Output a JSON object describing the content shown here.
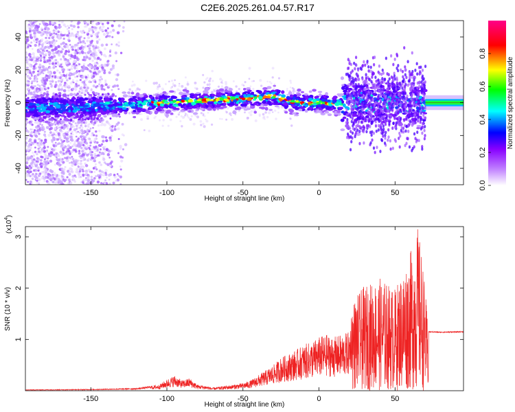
{
  "title": "C2E6.2025.261.04.57.R17",
  "chart_data": [
    {
      "type": "heatmap",
      "title": "C2E6.2025.261.04.57.R17",
      "xlabel": "Height of straight line (km)",
      "ylabel": "Frequency (Hz)",
      "xlim": [
        -193,
        95
      ],
      "ylim": [
        -50,
        50
      ],
      "xticks": [
        -150,
        -100,
        -50,
        0,
        50
      ],
      "yticks": [
        -40,
        -20,
        0,
        20,
        40
      ],
      "colorbar": {
        "label": "Normalized spectral amplitude",
        "range": [
          0,
          1
        ],
        "ticks": [
          "0.0",
          "0.2",
          "0.4",
          "0.6",
          "0.8"
        ],
        "colors": [
          "#ffffff",
          "#8800ff",
          "#0000ff",
          "#00ffff",
          "#00ff00",
          "#ffff00",
          "#ff0000",
          "#ff00aa"
        ]
      },
      "ridge": {
        "x": [
          -185,
          -160,
          -140,
          -120,
          -100,
          -80,
          -60,
          -40,
          -30,
          -20,
          -10,
          0,
          10,
          15,
          20,
          30,
          40,
          50,
          60,
          70,
          95
        ],
        "y": [
          -3,
          -3,
          -2,
          -1,
          0,
          1,
          2,
          3,
          4,
          1,
          0,
          0,
          -1,
          -1,
          0,
          0,
          0,
          0,
          0,
          0,
          0
        ]
      }
    },
    {
      "type": "line",
      "xlabel": "Height of straight line (km)",
      "ylabel": "SNR (10 * v/v)",
      "y_multiplier_label": "(x10",
      "y_multiplier_exp": "4",
      "y_multiplier_close": ")",
      "xlim": [
        -193,
        95
      ],
      "ylim": [
        0,
        3.2
      ],
      "xticks": [
        -150,
        -100,
        -50,
        0,
        50
      ],
      "yticks": [
        1,
        2,
        3
      ],
      "color": "#ee2222",
      "envelope": {
        "x": [
          -193,
          -150,
          -120,
          -105,
          -100,
          -95,
          -90,
          -85,
          -80,
          -75,
          -70,
          -60,
          -50,
          -45,
          -40,
          -35,
          -30,
          -25,
          -20,
          -15,
          -10,
          -5,
          0,
          5,
          10,
          15,
          20,
          22,
          30,
          40,
          50,
          60,
          65,
          68,
          70,
          72,
          80,
          95
        ],
        "y": [
          0.02,
          0.03,
          0.05,
          0.12,
          0.22,
          0.3,
          0.2,
          0.25,
          0.12,
          0.1,
          0.06,
          0.1,
          0.15,
          0.2,
          0.3,
          0.4,
          0.5,
          0.65,
          0.72,
          0.8,
          0.9,
          0.95,
          1.05,
          1.1,
          1.05,
          1.1,
          1.15,
          1.75,
          2.05,
          2.2,
          2.0,
          2.7,
          3.2,
          2.6,
          1.9,
          1.15,
          1.14,
          1.15
        ]
      }
    }
  ]
}
